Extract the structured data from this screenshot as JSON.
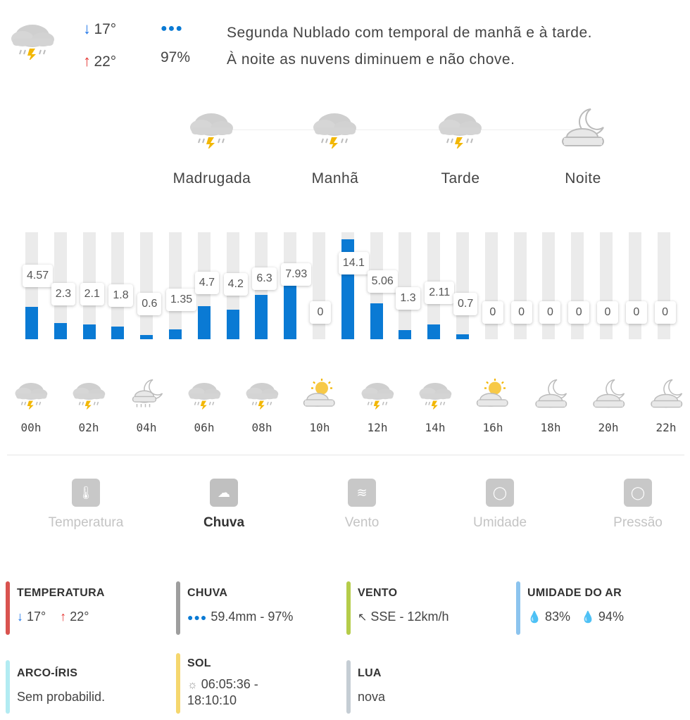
{
  "header": {
    "min_temp": "17°",
    "max_temp": "22°",
    "rain_prob": "97%",
    "desc_line1": "Segunda Nublado com temporal de manhã e à tarde.",
    "desc_line2": "À noite as nuvens diminuem e não chove."
  },
  "periods": [
    {
      "label": "Madrugada",
      "icon": "storm-cloud-icon"
    },
    {
      "label": "Manhã",
      "icon": "storm-cloud-icon"
    },
    {
      "label": "Tarde",
      "icon": "storm-cloud-icon"
    },
    {
      "label": "Noite",
      "icon": "moon-cloud-icon"
    }
  ],
  "chart_data": {
    "type": "bar",
    "title": "",
    "xlabel": "",
    "ylabel": "",
    "ylim": [
      0,
      14.1
    ],
    "values": [
      4.57,
      2.3,
      2.1,
      1.8,
      0.6,
      1.35,
      4.7,
      4.2,
      6.3,
      7.93,
      0,
      14.1,
      5.06,
      1.3,
      2.11,
      0.7,
      0,
      0,
      0,
      0,
      0,
      0,
      0
    ],
    "labels": [
      "4.57",
      "2.3",
      "2.1",
      "1.8",
      "0.6",
      "1.35",
      "4.7",
      "4.2",
      "6.3",
      "7.93",
      "0",
      "14.1",
      "5.06",
      "1.3",
      "2.11",
      "0.7",
      "0",
      "0",
      "0",
      "0",
      "0",
      "0",
      "0"
    ]
  },
  "hours": [
    {
      "label": "00h",
      "icon": "storm-cloud-icon"
    },
    {
      "label": "02h",
      "icon": "storm-cloud-icon"
    },
    {
      "label": "04h",
      "icon": "moon-rain-cloud-icon"
    },
    {
      "label": "06h",
      "icon": "storm-cloud-icon"
    },
    {
      "label": "08h",
      "icon": "storm-cloud-icon"
    },
    {
      "label": "10h",
      "icon": "sun-cloud-icon"
    },
    {
      "label": "12h",
      "icon": "storm-cloud-icon"
    },
    {
      "label": "14h",
      "icon": "storm-cloud-icon"
    },
    {
      "label": "16h",
      "icon": "sun-cloud-icon"
    },
    {
      "label": "18h",
      "icon": "moon-cloud-icon"
    },
    {
      "label": "20h",
      "icon": "moon-cloud-icon"
    },
    {
      "label": "22h",
      "icon": "moon-cloud-icon"
    }
  ],
  "tabs": [
    {
      "label": "Temperatura",
      "icon": "thermometer-icon",
      "active": false
    },
    {
      "label": "Chuva",
      "icon": "rain-cloud-icon",
      "active": true
    },
    {
      "label": "Vento",
      "icon": "wind-icon",
      "active": false
    },
    {
      "label": "Umidade",
      "icon": "droplet-icon",
      "active": false
    },
    {
      "label": "Pressão",
      "icon": "gauge-icon",
      "active": false
    }
  ],
  "stats": {
    "temperature": {
      "title": "TEMPERATURA",
      "min": "17°",
      "max": "22°",
      "color": "#d9534f"
    },
    "rain": {
      "title": "CHUVA",
      "value": "59.4mm - 97%",
      "color": "#9e9e9e"
    },
    "wind": {
      "title": "VENTO",
      "value": "SSE - 12km/h",
      "color": "#b5cc4a"
    },
    "humidity": {
      "title": "UMIDADE DO AR",
      "min": "83%",
      "max": "94%",
      "color": "#8cc4ee"
    },
    "rainbow": {
      "title": "ARCO-ÍRIS",
      "value": "Sem probabilid.",
      "color": "#b2ebf2"
    },
    "sun": {
      "title": "SOL",
      "value": "06:05:36 - 18:10:10",
      "value_line1": "06:05:36 -",
      "value_line2": "18:10:10",
      "color": "#f5d76e"
    },
    "moon": {
      "title": "LUA",
      "value": "nova",
      "color": "#c5cdd4"
    }
  },
  "colors": {
    "bar": "#0a7ad4",
    "bar_bg": "#ebebeb",
    "min_arrow": "#1a73e8",
    "max_arrow": "#e53935"
  }
}
